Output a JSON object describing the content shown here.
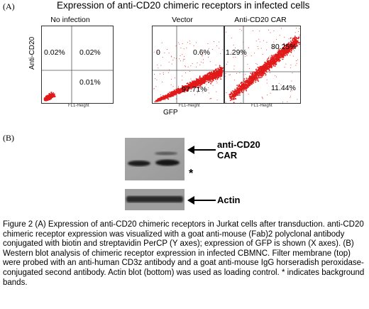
{
  "panel_a": {
    "label": "(A)",
    "title": "Expression of anti-CD20 chimeric receptors in infected cells",
    "y_axis_label": "Anti-CD20",
    "x_axis_label": "GFP",
    "fl_label": "FL1-Height",
    "plots": [
      {
        "title": "No infection",
        "quadrants": {
          "upper_left": "0.02%",
          "upper_right": "0.02%",
          "lower_right": "0.01%"
        },
        "population": "lower-left-corner"
      },
      {
        "title": "Vector",
        "quadrants": {
          "upper_left": "0",
          "upper_right": "0.6%",
          "lower_right": "97.71%"
        },
        "population": "lower-right-band"
      },
      {
        "title": "Anti-CD20 CAR",
        "quadrants": {
          "upper_left": "1.29%",
          "upper_right": "80.25%",
          "lower_right": "11.44%"
        },
        "population": "upper-right-diagonal"
      }
    ],
    "dot_color": "#e11a1a"
  },
  "panel_b": {
    "label": "(B)",
    "car_label_line1": "anti-CD20",
    "car_label_line2": "CAR",
    "asterisk": "*",
    "actin_label": "Actin"
  },
  "caption": "Figure 2 (A) Expression of anti-CD20 chimeric receptors in Jurkat cells after transduction. anti-CD20 chimeric receptor expression was visualized with a goat anti-mouse (Fab)2 polyclonal antibody conjugated with biotin and streptavidin PerCP (Y axes); expression of GFP is shown (X axes). (B) Western blot analysis of chimeric receptor expression in infected CBMNC. Filter membrane (top) were probed with an anti-human CD3z antibody and a goat anti-mouse IgG horseradish peroxidase-conjugated second antibody. Actin blot (bottom) was used as loading control. * indicates background bands."
}
